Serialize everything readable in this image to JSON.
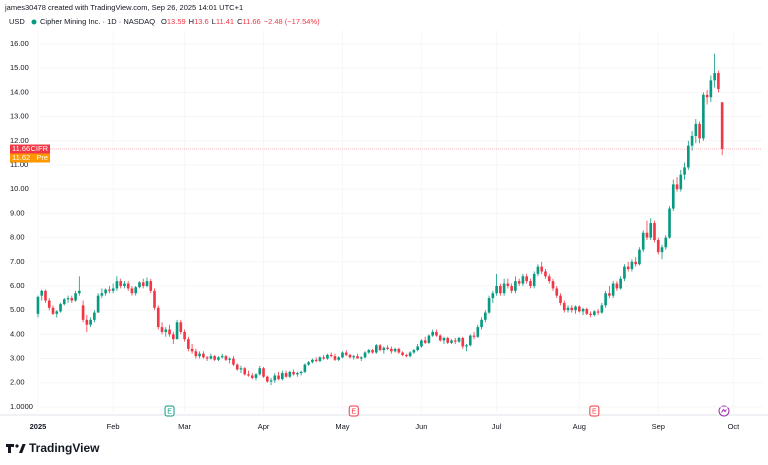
{
  "chart_data": {
    "type": "candlestick",
    "attribution": "james30478 created with TradingView.com, Sep 26, 2025 14:01 UTC+1",
    "currency": "USD",
    "title": "Cipher Mining Inc. · 1D · NASDAQ",
    "legend_values": [
      {
        "label": "O",
        "value": 13.59
      },
      {
        "label": "H",
        "value": 13.6
      },
      {
        "label": "L",
        "value": 11.41
      },
      {
        "label": "C",
        "value": 11.66
      }
    ],
    "change": "−2.48 (−17.54%)",
    "up_color": "#089981",
    "down_color": "#f23645",
    "ohlc": [
      [
        4.85,
        5.6,
        4.7,
        5.55
      ],
      [
        5.6,
        5.85,
        5.4,
        5.8
      ],
      [
        5.8,
        5.85,
        5.3,
        5.4
      ],
      [
        5.4,
        5.5,
        5.0,
        5.1
      ],
      [
        5.1,
        5.2,
        4.8,
        4.85
      ],
      [
        4.85,
        5.0,
        4.7,
        4.95
      ],
      [
        4.95,
        5.3,
        4.9,
        5.25
      ],
      [
        5.25,
        5.5,
        5.2,
        5.45
      ],
      [
        5.45,
        5.6,
        5.3,
        5.5
      ],
      [
        5.5,
        5.6,
        5.3,
        5.4
      ],
      [
        5.4,
        5.8,
        5.35,
        5.7
      ],
      [
        5.7,
        6.4,
        5.6,
        5.8
      ],
      [
        5.2,
        5.4,
        4.5,
        4.6
      ],
      [
        4.6,
        4.8,
        4.1,
        4.4
      ],
      [
        4.4,
        4.7,
        4.3,
        4.6
      ],
      [
        4.6,
        5.0,
        4.5,
        4.9
      ],
      [
        4.9,
        5.7,
        4.9,
        5.6
      ],
      [
        5.6,
        5.9,
        5.5,
        5.7
      ],
      [
        5.7,
        5.9,
        5.6,
        5.85
      ],
      [
        5.85,
        6.0,
        5.7,
        5.8
      ],
      [
        5.8,
        6.1,
        5.7,
        5.9
      ],
      [
        5.9,
        6.4,
        5.8,
        6.2
      ],
      [
        6.2,
        6.3,
        5.9,
        6.0
      ],
      [
        6.0,
        6.2,
        5.9,
        6.1
      ],
      [
        6.1,
        6.2,
        5.8,
        5.9
      ],
      [
        5.9,
        6.0,
        5.6,
        5.7
      ],
      [
        5.7,
        6.0,
        5.6,
        5.95
      ],
      [
        5.95,
        6.2,
        5.9,
        6.15
      ],
      [
        6.15,
        6.3,
        5.9,
        6.0
      ],
      [
        6.0,
        6.35,
        5.95,
        6.2
      ],
      [
        6.2,
        6.3,
        5.7,
        5.8
      ],
      [
        5.8,
        5.9,
        5.0,
        5.1
      ],
      [
        5.1,
        5.2,
        4.2,
        4.3
      ],
      [
        4.3,
        4.5,
        4.0,
        4.1
      ],
      [
        4.1,
        4.3,
        3.9,
        4.2
      ],
      [
        4.2,
        4.4,
        3.9,
        4.0
      ],
      [
        4.0,
        4.1,
        3.6,
        3.8
      ],
      [
        3.8,
        4.6,
        3.8,
        4.5
      ],
      [
        4.5,
        4.6,
        4.0,
        4.1
      ],
      [
        4.1,
        4.2,
        3.7,
        3.8
      ],
      [
        3.8,
        3.9,
        3.3,
        3.4
      ],
      [
        3.4,
        3.6,
        3.2,
        3.3
      ],
      [
        3.3,
        3.4,
        3.0,
        3.1
      ],
      [
        3.1,
        3.3,
        3.0,
        3.2
      ],
      [
        3.2,
        3.3,
        3.0,
        3.05
      ],
      [
        3.05,
        3.1,
        2.9,
        3.0
      ],
      [
        3.0,
        3.2,
        2.95,
        3.1
      ],
      [
        3.1,
        3.15,
        2.9,
        2.95
      ],
      [
        2.95,
        3.1,
        2.9,
        3.05
      ],
      [
        3.05,
        3.2,
        3.0,
        3.1
      ],
      [
        3.1,
        3.15,
        2.9,
        2.95
      ],
      [
        2.95,
        3.05,
        2.8,
        3.0
      ],
      [
        3.0,
        3.1,
        2.7,
        2.75
      ],
      [
        2.75,
        2.8,
        2.5,
        2.55
      ],
      [
        2.55,
        2.7,
        2.4,
        2.6
      ],
      [
        2.6,
        2.65,
        2.3,
        2.35
      ],
      [
        2.35,
        2.5,
        2.25,
        2.3
      ],
      [
        2.3,
        2.4,
        2.15,
        2.2
      ],
      [
        2.2,
        2.4,
        2.1,
        2.35
      ],
      [
        2.35,
        2.7,
        2.3,
        2.6
      ],
      [
        2.6,
        2.65,
        2.2,
        2.25
      ],
      [
        2.25,
        2.3,
        2.0,
        2.05
      ],
      [
        2.05,
        2.2,
        1.9,
        2.1
      ],
      [
        2.1,
        2.4,
        2.0,
        2.3
      ],
      [
        2.3,
        2.45,
        2.1,
        2.15
      ],
      [
        2.15,
        2.5,
        2.1,
        2.4
      ],
      [
        2.4,
        2.5,
        2.2,
        2.25
      ],
      [
        2.25,
        2.5,
        2.2,
        2.45
      ],
      [
        2.45,
        2.55,
        2.3,
        2.35
      ],
      [
        2.35,
        2.45,
        2.25,
        2.4
      ],
      [
        2.4,
        2.5,
        2.3,
        2.45
      ],
      [
        2.45,
        2.8,
        2.4,
        2.75
      ],
      [
        2.75,
        2.9,
        2.7,
        2.85
      ],
      [
        2.85,
        3.0,
        2.8,
        2.95
      ],
      [
        2.95,
        3.05,
        2.85,
        2.9
      ],
      [
        2.9,
        3.1,
        2.85,
        3.05
      ],
      [
        3.05,
        3.15,
        2.95,
        3.0
      ],
      [
        3.0,
        3.2,
        2.95,
        3.15
      ],
      [
        3.15,
        3.25,
        3.05,
        3.1
      ],
      [
        3.1,
        3.2,
        2.9,
        2.95
      ],
      [
        2.95,
        3.1,
        2.9,
        3.05
      ],
      [
        3.05,
        3.3,
        3.0,
        3.25
      ],
      [
        3.25,
        3.35,
        3.1,
        3.15
      ],
      [
        3.15,
        3.2,
        3.0,
        3.05
      ],
      [
        3.05,
        3.15,
        2.95,
        3.1
      ],
      [
        3.1,
        3.2,
        3.0,
        3.0
      ],
      [
        3.0,
        3.1,
        2.9,
        3.05
      ],
      [
        3.05,
        3.3,
        3.0,
        3.25
      ],
      [
        3.25,
        3.4,
        3.2,
        3.35
      ],
      [
        3.35,
        3.4,
        3.2,
        3.25
      ],
      [
        3.25,
        3.6,
        3.2,
        3.55
      ],
      [
        3.55,
        3.6,
        3.3,
        3.35
      ],
      [
        3.35,
        3.5,
        3.2,
        3.45
      ],
      [
        3.45,
        3.55,
        3.35,
        3.4
      ],
      [
        3.4,
        3.5,
        3.2,
        3.3
      ],
      [
        3.3,
        3.45,
        3.25,
        3.4
      ],
      [
        3.4,
        3.45,
        3.2,
        3.25
      ],
      [
        3.25,
        3.3,
        3.1,
        3.15
      ],
      [
        3.15,
        3.2,
        3.05,
        3.1
      ],
      [
        3.1,
        3.3,
        3.05,
        3.25
      ],
      [
        3.25,
        3.4,
        3.2,
        3.35
      ],
      [
        3.35,
        3.6,
        3.3,
        3.5
      ],
      [
        3.5,
        3.8,
        3.45,
        3.75
      ],
      [
        3.75,
        3.9,
        3.6,
        3.65
      ],
      [
        3.65,
        4.0,
        3.6,
        3.95
      ],
      [
        3.95,
        4.2,
        3.9,
        4.1
      ],
      [
        4.1,
        4.2,
        3.9,
        3.95
      ],
      [
        3.95,
        4.0,
        3.7,
        3.75
      ],
      [
        3.75,
        3.9,
        3.6,
        3.85
      ],
      [
        3.85,
        3.9,
        3.6,
        3.65
      ],
      [
        3.65,
        3.8,
        3.6,
        3.75
      ],
      [
        3.75,
        3.85,
        3.6,
        3.7
      ],
      [
        3.7,
        3.9,
        3.65,
        3.85
      ],
      [
        3.85,
        3.9,
        3.4,
        3.5
      ],
      [
        3.5,
        3.6,
        3.3,
        3.55
      ],
      [
        3.55,
        4.0,
        3.5,
        3.95
      ],
      [
        3.95,
        4.1,
        3.8,
        3.9
      ],
      [
        3.9,
        4.4,
        3.85,
        4.3
      ],
      [
        4.3,
        4.7,
        4.2,
        4.6
      ],
      [
        4.6,
        5.0,
        4.5,
        4.9
      ],
      [
        4.9,
        5.6,
        4.85,
        5.5
      ],
      [
        5.5,
        5.8,
        5.3,
        5.7
      ],
      [
        5.7,
        6.5,
        5.6,
        6.0
      ],
      [
        6.0,
        6.1,
        5.6,
        5.7
      ],
      [
        5.7,
        6.3,
        5.6,
        6.1
      ],
      [
        6.1,
        6.3,
        5.9,
        6.0
      ],
      [
        6.0,
        6.1,
        5.7,
        5.8
      ],
      [
        5.8,
        6.4,
        5.7,
        6.2
      ],
      [
        6.2,
        6.3,
        6.0,
        6.1
      ],
      [
        6.1,
        6.5,
        6.0,
        6.4
      ],
      [
        6.4,
        6.5,
        6.1,
        6.2
      ],
      [
        6.2,
        6.3,
        5.9,
        6.0
      ],
      [
        6.0,
        6.6,
        5.9,
        6.5
      ],
      [
        6.5,
        6.9,
        6.4,
        6.8
      ],
      [
        6.8,
        7.0,
        6.5,
        6.6
      ],
      [
        6.6,
        6.7,
        6.3,
        6.4
      ],
      [
        6.4,
        6.5,
        6.1,
        6.2
      ],
      [
        6.2,
        6.3,
        5.8,
        5.9
      ],
      [
        5.9,
        6.0,
        5.5,
        5.6
      ],
      [
        5.6,
        5.7,
        5.2,
        5.3
      ],
      [
        5.3,
        5.4,
        4.9,
        5.0
      ],
      [
        5.0,
        5.2,
        4.9,
        5.1
      ],
      [
        5.1,
        5.2,
        4.9,
        5.0
      ],
      [
        5.0,
        5.2,
        4.85,
        5.15
      ],
      [
        5.15,
        5.2,
        4.9,
        4.95
      ],
      [
        4.95,
        5.1,
        4.8,
        5.05
      ],
      [
        5.05,
        5.1,
        4.8,
        4.85
      ],
      [
        4.85,
        4.95,
        4.7,
        4.8
      ],
      [
        4.8,
        5.0,
        4.75,
        4.95
      ],
      [
        4.95,
        5.05,
        4.8,
        4.9
      ],
      [
        4.9,
        5.3,
        4.85,
        5.2
      ],
      [
        5.2,
        5.8,
        5.1,
        5.7
      ],
      [
        5.7,
        6.0,
        5.5,
        5.6
      ],
      [
        5.6,
        6.2,
        5.5,
        6.1
      ],
      [
        6.1,
        6.2,
        5.8,
        5.9
      ],
      [
        5.9,
        6.4,
        5.85,
        6.3
      ],
      [
        6.3,
        6.9,
        6.2,
        6.8
      ],
      [
        6.8,
        7.0,
        6.6,
        6.7
      ],
      [
        6.7,
        7.1,
        6.6,
        7.0
      ],
      [
        7.0,
        7.2,
        6.8,
        6.9
      ],
      [
        6.9,
        7.6,
        6.85,
        7.5
      ],
      [
        7.5,
        8.3,
        7.4,
        8.2
      ],
      [
        8.2,
        8.7,
        7.9,
        8.0
      ],
      [
        8.0,
        8.8,
        7.9,
        8.6
      ],
      [
        8.6,
        8.7,
        7.8,
        7.9
      ],
      [
        7.9,
        8.0,
        7.3,
        7.4
      ],
      [
        7.4,
        7.7,
        7.1,
        7.6
      ],
      [
        7.6,
        8.1,
        7.5,
        8.0
      ],
      [
        8.0,
        9.3,
        7.95,
        9.2
      ],
      [
        9.2,
        10.4,
        9.1,
        10.2
      ],
      [
        10.2,
        10.5,
        9.9,
        10.0
      ],
      [
        10.0,
        10.8,
        9.9,
        10.6
      ],
      [
        10.6,
        11.1,
        10.4,
        10.9
      ],
      [
        10.9,
        12.0,
        10.8,
        11.8
      ],
      [
        11.8,
        12.4,
        11.6,
        12.2
      ],
      [
        12.2,
        12.9,
        11.9,
        12.7
      ],
      [
        12.7,
        12.8,
        11.9,
        12.1
      ],
      [
        12.1,
        14.0,
        12.0,
        13.9
      ],
      [
        13.9,
        14.1,
        13.5,
        13.8
      ],
      [
        13.8,
        14.7,
        13.6,
        14.5
      ],
      [
        14.5,
        15.6,
        14.2,
        14.8
      ],
      [
        14.8,
        14.9,
        14.0,
        14.14
      ],
      [
        13.59,
        13.6,
        11.41,
        11.66
      ]
    ],
    "xlim": [
      -10.1,
      192.6
    ],
    "xticks": [
      {
        "value": 0,
        "label": "2025"
      },
      {
        "value": 20,
        "label": "Feb"
      },
      {
        "value": 39,
        "label": "Mar"
      },
      {
        "value": 60,
        "label": "Apr"
      },
      {
        "value": 81,
        "label": "May"
      },
      {
        "value": 102,
        "label": "Jun"
      },
      {
        "value": 122,
        "label": "Jul"
      },
      {
        "value": 144,
        "label": "Aug"
      },
      {
        "value": 165,
        "label": "Sep"
      },
      {
        "value": 185,
        "label": "Oct"
      }
    ],
    "ylim": [
      0.75,
      16.58
    ],
    "yticks": [
      {
        "value": 1,
        "label": "1.0000"
      },
      {
        "value": 2,
        "label": "2.00"
      },
      {
        "value": 3,
        "label": "3.00"
      },
      {
        "value": 4,
        "label": "4.00"
      },
      {
        "value": 5,
        "label": "5.00"
      },
      {
        "value": 6,
        "label": "6.00"
      },
      {
        "value": 7,
        "label": "7.00"
      },
      {
        "value": 8,
        "label": "8.00"
      },
      {
        "value": 9,
        "label": "9.00"
      },
      {
        "value": 10,
        "label": "10.00"
      },
      {
        "value": 11,
        "label": "11.00"
      },
      {
        "value": 12,
        "label": "12.00"
      },
      {
        "value": 13,
        "label": "13.00"
      },
      {
        "value": 14,
        "label": "14.00"
      },
      {
        "value": 15,
        "label": "15.00"
      },
      {
        "value": 16,
        "label": "16.00"
      }
    ],
    "grid": true,
    "price_labels": [
      {
        "value": 11.66,
        "tag": "CIFR",
        "color": "#f23645"
      },
      {
        "value": 11.62,
        "tag": "Pre",
        "color": "#ff9800"
      }
    ],
    "event_markers": [
      {
        "label": "E",
        "color": "#089981"
      },
      {
        "label": "E",
        "color": "#f23645"
      },
      {
        "label": "E",
        "color": "#f23645"
      }
    ],
    "brand": "TradingView"
  }
}
